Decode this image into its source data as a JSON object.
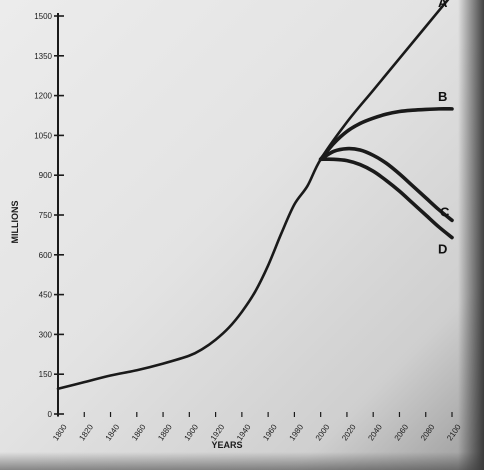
{
  "chart_data": {
    "type": "line",
    "title": "",
    "xlabel": "YEARS",
    "ylabel": "MILLIONS",
    "xlim": [
      1800,
      2100
    ],
    "ylim": [
      0,
      1500
    ],
    "xticks": [
      1800,
      1820,
      1840,
      1860,
      1880,
      1900,
      1920,
      1940,
      1960,
      1980,
      2000,
      2020,
      2040,
      2060,
      2080,
      2100
    ],
    "xtick_labels": [
      "1800",
      "1820",
      "1840",
      "1860",
      "1880",
      "1900",
      "1920",
      "1940",
      "1960",
      "1980",
      "2000",
      "2020",
      "2040",
      "2060",
      "2080",
      "2100"
    ],
    "yticks": [
      0,
      150,
      300,
      450,
      600,
      750,
      900,
      1050,
      1200,
      1350,
      1500
    ],
    "ytick_labels": [
      "0",
      "150",
      "300",
      "450",
      "600",
      "750",
      "900",
      "1050",
      "1200",
      "1350",
      "1500"
    ],
    "grid": false,
    "color": "#1a1a1a",
    "series": [
      {
        "name": "A",
        "x": [
          1800,
          1820,
          1840,
          1860,
          1880,
          1900,
          1910,
          1920,
          1930,
          1940,
          1950,
          1960,
          1970,
          1980,
          1990,
          2000,
          2020,
          2040,
          2060,
          2080,
          2100
        ],
        "y": [
          95,
          120,
          145,
          165,
          190,
          220,
          245,
          280,
          325,
          385,
          460,
          560,
          680,
          790,
          860,
          960,
          1100,
          1220,
          1340,
          1460,
          1580
        ]
      },
      {
        "name": "B",
        "x": [
          2000,
          2010,
          2020,
          2030,
          2040,
          2050,
          2060,
          2070,
          2080,
          2090,
          2100
        ],
        "y": [
          960,
          1020,
          1065,
          1095,
          1115,
          1130,
          1140,
          1145,
          1148,
          1150,
          1150
        ]
      },
      {
        "name": "C",
        "x": [
          2000,
          2010,
          2020,
          2030,
          2040,
          2050,
          2060,
          2070,
          2080,
          2090,
          2100
        ],
        "y": [
          960,
          990,
          1000,
          995,
          975,
          945,
          905,
          860,
          815,
          770,
          730
        ]
      },
      {
        "name": "D",
        "x": [
          2000,
          2010,
          2020,
          2030,
          2040,
          2050,
          2060,
          2070,
          2080,
          2090,
          2100
        ],
        "y": [
          960,
          960,
          955,
          940,
          915,
          880,
          840,
          795,
          750,
          705,
          665
        ]
      }
    ]
  }
}
